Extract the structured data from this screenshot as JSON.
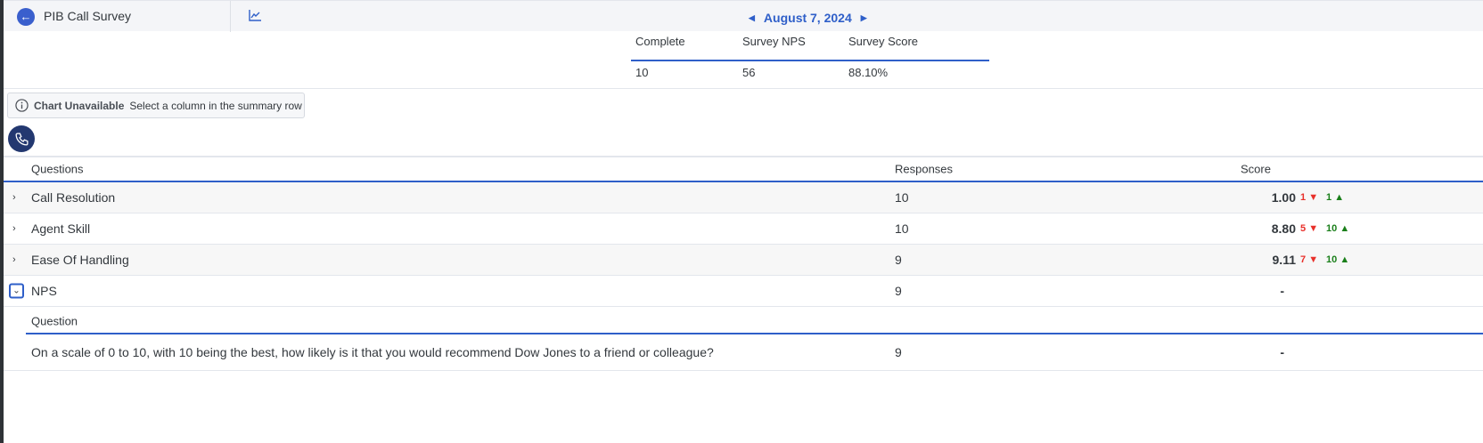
{
  "header": {
    "title": "PIB Call Survey",
    "back_icon": "arrow-left-icon",
    "chart_icon": "line-chart-icon",
    "date": "August 7, 2024"
  },
  "summary": {
    "columns": [
      "Complete",
      "Survey NPS",
      "Survey Score"
    ],
    "values": [
      "10",
      "56",
      "88.10%"
    ]
  },
  "notice": {
    "bold": "Chart Unavailable",
    "text": "Select a column in the summary row"
  },
  "table": {
    "headers": {
      "questions": "Questions",
      "responses": "Responses",
      "score": "Score"
    },
    "rows": [
      {
        "question": "Call Resolution",
        "responses": "10",
        "score": "1.00",
        "low": "1",
        "high": "1"
      },
      {
        "question": "Agent Skill",
        "responses": "10",
        "score": "8.80",
        "low": "5",
        "high": "10"
      },
      {
        "question": "Ease Of Handling",
        "responses": "9",
        "score": "9.11",
        "low": "7",
        "high": "10"
      },
      {
        "question": "NPS",
        "responses": "9",
        "score": "-",
        "expanded": true
      }
    ],
    "sub": {
      "header": "Question",
      "question": "On a scale of 0 to 10, with 10 being the best, how likely is it that you would recommend Dow Jones to a friend or colleague?",
      "responses": "9",
      "score": "-"
    }
  },
  "colors": {
    "accent": "#2f5fc9",
    "negative": "#e8302a",
    "positive": "#1a7f1a",
    "phone_bg": "#233870"
  }
}
